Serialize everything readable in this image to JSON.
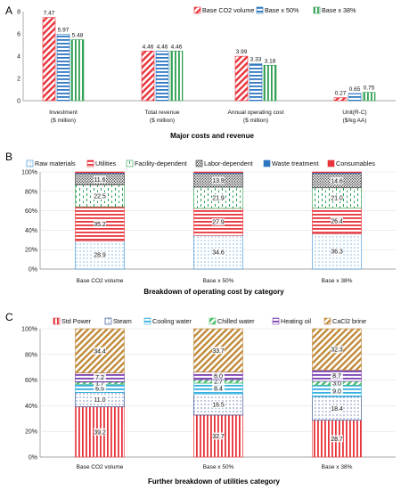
{
  "chart_data": [
    {
      "panel": "A",
      "type": "bar",
      "caption": "Major costs and revenue",
      "ylim": [
        0,
        8
      ],
      "yticks": [
        "0",
        "2",
        "4",
        "6",
        "8"
      ],
      "grid": false,
      "legend_position": "top",
      "categories": [
        "Investment",
        "Total revenue",
        "Annual operating cost",
        "Unit(R-C)"
      ],
      "category_units": [
        "($ million)",
        "($ million)",
        "($ million)",
        "($/kg AA)"
      ],
      "series": [
        {
          "name": "Base CO2 volume",
          "color": "#e8333a",
          "pattern": "diag",
          "values": [
            7.47,
            4.46,
            3.99,
            0.27
          ],
          "labels": [
            "7.47",
            "4.46",
            "3.99",
            "0.27"
          ]
        },
        {
          "name": "Base x 50%",
          "color": "#2e78c2",
          "pattern": "horiz",
          "values": [
            5.97,
            4.46,
            3.33,
            0.65
          ],
          "labels": [
            "5.97",
            "4.46",
            "3.33",
            "0.65"
          ]
        },
        {
          "name": "Base x 38%",
          "color": "#2e9e4f",
          "pattern": "vert",
          "values": [
            5.48,
            4.46,
            3.18,
            0.75
          ],
          "labels": [
            "5.48",
            "4.46",
            "3.18",
            "0.75"
          ]
        }
      ]
    },
    {
      "panel": "B",
      "type": "bar",
      "stacked": true,
      "caption": "Breakdown of operating cost by category",
      "ylim": [
        0,
        100
      ],
      "yticks": [
        "0%",
        "20%",
        "40%",
        "60%",
        "80%",
        "100%"
      ],
      "legend_position": "top",
      "categories": [
        "Base CO2 volume",
        "Base x 50%",
        "Base x 38%"
      ],
      "series": [
        {
          "name": "Raw materials",
          "color": "#3b8fd6",
          "pattern": "dots",
          "values": [
            28.9,
            34.6,
            36.3
          ],
          "labels": [
            "28.9",
            "34.6",
            "36.3"
          ]
        },
        {
          "name": "Utilities",
          "color": "#e8333a",
          "pattern": "horiz",
          "values": [
            35.2,
            27.9,
            26.4
          ],
          "labels": [
            "35.2",
            "27.9",
            "26.4"
          ]
        },
        {
          "name": "Facility-dependent",
          "color": "#2e9e4f",
          "pattern": "dash",
          "values": [
            22.5,
            21.9,
            21.0
          ],
          "labels": [
            "22.5",
            "21.9",
            "21.0"
          ]
        },
        {
          "name": "Labor-dependent",
          "color": "#333333",
          "pattern": "dense",
          "values": [
            11.6,
            13.9,
            14.6
          ],
          "labels": [
            "11.6",
            "13.9",
            "14.6"
          ]
        },
        {
          "name": "Waste treatment",
          "color": "#2e78c2",
          "pattern": "solid",
          "values": [
            0.9,
            0.9,
            0.9
          ],
          "labels": [
            "",
            "",
            ""
          ]
        },
        {
          "name": "Consumables",
          "color": "#e8333a",
          "pattern": "solid",
          "values": [
            0.9,
            0.8,
            0.8
          ],
          "labels": [
            "",
            "",
            ""
          ]
        }
      ]
    },
    {
      "panel": "C",
      "type": "bar",
      "stacked": true,
      "caption": "Further breakdown of utilities category",
      "ylim": [
        0,
        100
      ],
      "yticks": [
        "0%",
        "20%",
        "40%",
        "60%",
        "80%",
        "100%"
      ],
      "legend_position": "top",
      "categories": [
        "Base CO2 volume",
        "Base x 50%",
        "Base x 38%"
      ],
      "series": [
        {
          "name": "Std Power",
          "color": "#e8333a",
          "pattern": "vert",
          "values": [
            39.2,
            32.7,
            28.7
          ],
          "labels": [
            "39.2",
            "32.7",
            "28.7"
          ]
        },
        {
          "name": "Steam",
          "color": "#1f3f8a",
          "pattern": "dots",
          "values": [
            11.0,
            16.5,
            18.4
          ],
          "labels": [
            "11.0",
            "16.5",
            "18.4"
          ]
        },
        {
          "name": "Cooling water",
          "color": "#35b0e0",
          "pattern": "horiz",
          "values": [
            6.5,
            8.4,
            9.0
          ],
          "labels": [
            "6.5",
            "8.4",
            "9.0"
          ]
        },
        {
          "name": "Chilled water",
          "color": "#4cc06a",
          "pattern": "diag",
          "values": [
            1.7,
            2.7,
            3.0
          ],
          "labels": [
            "1.7",
            "2.7",
            "3.0"
          ]
        },
        {
          "name": "Heating oil",
          "color": "#7a3fb0",
          "pattern": "horiz",
          "values": [
            7.2,
            6.0,
            8.7
          ],
          "labels": [
            "7.2",
            "6.0",
            "8.7"
          ]
        },
        {
          "name": "CaCl2 brine",
          "color": "#c08a3a",
          "pattern": "diag",
          "values": [
            34.4,
            33.7,
            32.3
          ],
          "labels": [
            "34.4",
            "33.7",
            "32.3"
          ]
        }
      ]
    }
  ],
  "panel_labels": [
    "A",
    "B",
    "C"
  ]
}
